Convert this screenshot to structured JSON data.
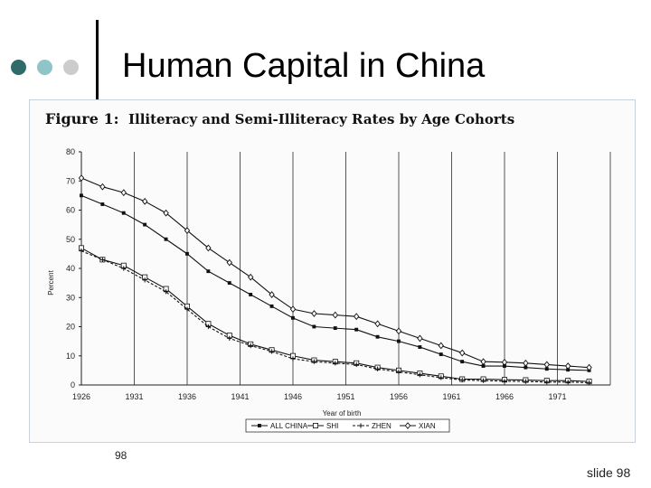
{
  "slide": {
    "title": "Human Capital in China",
    "page_number": "98",
    "slide_label": "slide 98",
    "accent_dots": [
      "#2f6b6b",
      "#8fc4c8",
      "#cccccc"
    ]
  },
  "chart_data": {
    "type": "line",
    "figure_label": "Figure 1:",
    "title": "Illiteracy and Semi-Illiteracy Rates by Age Cohorts",
    "xlabel": "Year of birth",
    "ylabel": "Percent",
    "xlim": [
      1926,
      1976
    ],
    "ylim": [
      0,
      80
    ],
    "xticks": [
      1926,
      1931,
      1936,
      1941,
      1946,
      1951,
      1956,
      1961,
      1966,
      1971
    ],
    "yticks": [
      0,
      10,
      20,
      30,
      40,
      50,
      60,
      70,
      80
    ],
    "grid": "vertical",
    "legend_position": "bottom-center",
    "x": [
      1926,
      1928,
      1930,
      1932,
      1934,
      1936,
      1938,
      1940,
      1942,
      1944,
      1946,
      1948,
      1950,
      1952,
      1954,
      1956,
      1958,
      1960,
      1962,
      1964,
      1966,
      1968,
      1970,
      1972,
      1974
    ],
    "series": [
      {
        "name": "ALL CHINA",
        "marker": "square",
        "values": [
          65,
          62,
          59,
          55,
          50,
          45,
          39,
          35,
          31,
          27,
          23,
          20,
          19.5,
          19,
          16.5,
          15,
          13,
          10.5,
          8,
          6.5,
          6.5,
          6,
          5.5,
          5.2,
          5
        ]
      },
      {
        "name": "SHI",
        "marker": "open-square",
        "values": [
          47,
          43,
          41,
          37,
          33,
          27,
          21,
          17,
          14,
          12,
          10,
          8.5,
          8,
          7.5,
          6,
          5,
          4,
          3,
          2,
          2,
          1.8,
          1.7,
          1.5,
          1.5,
          1.2
        ]
      },
      {
        "name": "ZHEN",
        "marker": "plus",
        "values": [
          46,
          43,
          40,
          36,
          32,
          26,
          20,
          16,
          13.5,
          11.5,
          9,
          8,
          7.5,
          7,
          5.5,
          4.5,
          3.5,
          2.5,
          1.7,
          1.5,
          1.3,
          1.2,
          1,
          1,
          0.8
        ]
      },
      {
        "name": "XIAN",
        "marker": "diamond",
        "values": [
          71,
          68,
          66,
          63,
          59,
          53,
          47,
          42,
          37,
          31,
          26,
          24.5,
          24,
          23.5,
          21,
          18.5,
          16,
          13.5,
          11,
          8,
          7.8,
          7.5,
          7,
          6.5,
          6
        ]
      }
    ]
  }
}
